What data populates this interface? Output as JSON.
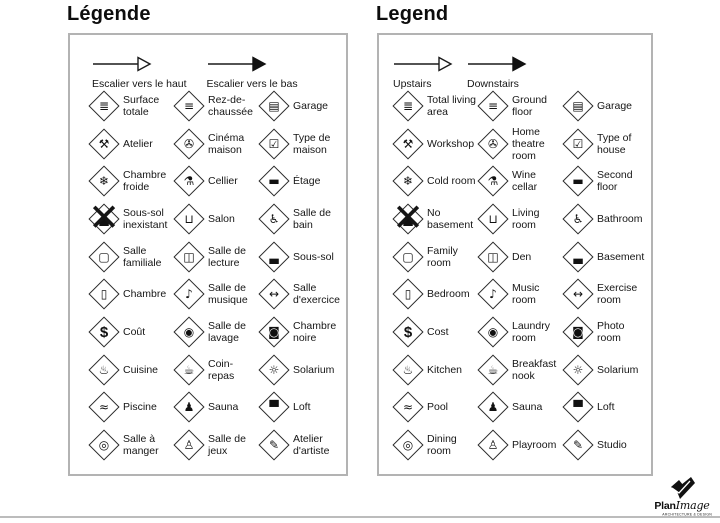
{
  "colors": {
    "ink": "#1a1a1a",
    "panel_border": "#b3b3b3"
  },
  "panels": [
    {
      "id": "fr",
      "title": "Légende",
      "stairs_up": "Escalier vers le haut",
      "stairs_down": "Escalier vers le bas",
      "items": [
        {
          "icon": "total-living-area",
          "label": "Surface totale"
        },
        {
          "icon": "ground-floor",
          "label": "Rez-de-chaussée"
        },
        {
          "icon": "garage",
          "label": "Garage"
        },
        {
          "icon": "workshop",
          "label": "Atelier"
        },
        {
          "icon": "home-theatre",
          "label": "Cinéma maison"
        },
        {
          "icon": "type-of-house",
          "label": "Type de maison"
        },
        {
          "icon": "cold-room",
          "label": "Chambre froide"
        },
        {
          "icon": "wine-cellar",
          "label": "Cellier"
        },
        {
          "icon": "second-floor",
          "label": "Étage"
        },
        {
          "icon": "no-basement",
          "label": "Sous-sol inexistant"
        },
        {
          "icon": "living-room",
          "label": "Salon"
        },
        {
          "icon": "bathroom",
          "label": "Salle de bain"
        },
        {
          "icon": "family-room",
          "label": "Salle familiale"
        },
        {
          "icon": "den",
          "label": "Salle de lecture"
        },
        {
          "icon": "basement",
          "label": "Sous-sol"
        },
        {
          "icon": "bedroom",
          "label": "Chambre"
        },
        {
          "icon": "music-room",
          "label": "Salle de musique"
        },
        {
          "icon": "exercise-room",
          "label": "Salle d'exercice"
        },
        {
          "icon": "cost",
          "label": "Coût"
        },
        {
          "icon": "laundry-room",
          "label": "Salle de lavage"
        },
        {
          "icon": "photo-room",
          "label": "Chambre noire"
        },
        {
          "icon": "kitchen",
          "label": "Cuisine"
        },
        {
          "icon": "breakfast-nook",
          "label": "Coin-repas"
        },
        {
          "icon": "solarium",
          "label": "Solarium"
        },
        {
          "icon": "pool",
          "label": "Piscine"
        },
        {
          "icon": "sauna",
          "label": "Sauna"
        },
        {
          "icon": "loft",
          "label": "Loft"
        },
        {
          "icon": "dining-room",
          "label": "Salle à manger"
        },
        {
          "icon": "playroom",
          "label": "Salle de jeux"
        },
        {
          "icon": "studio",
          "label": "Atelier d'artiste"
        }
      ]
    },
    {
      "id": "en",
      "title": "Legend",
      "stairs_up": "Upstairs",
      "stairs_down": "Downstairs",
      "items": [
        {
          "icon": "total-living-area",
          "label": "Total living area"
        },
        {
          "icon": "ground-floor",
          "label": "Ground floor"
        },
        {
          "icon": "garage",
          "label": "Garage"
        },
        {
          "icon": "workshop",
          "label": "Workshop"
        },
        {
          "icon": "home-theatre",
          "label": "Home theatre room"
        },
        {
          "icon": "type-of-house",
          "label": "Type of house"
        },
        {
          "icon": "cold-room",
          "label": "Cold room"
        },
        {
          "icon": "wine-cellar",
          "label": "Wine cellar"
        },
        {
          "icon": "second-floor",
          "label": "Second floor"
        },
        {
          "icon": "no-basement",
          "label": "No basement"
        },
        {
          "icon": "living-room",
          "label": "Living room"
        },
        {
          "icon": "bathroom",
          "label": "Bathroom"
        },
        {
          "icon": "family-room",
          "label": "Family room"
        },
        {
          "icon": "den",
          "label": "Den"
        },
        {
          "icon": "basement",
          "label": "Basement"
        },
        {
          "icon": "bedroom",
          "label": "Bedroom"
        },
        {
          "icon": "music-room",
          "label": "Music room"
        },
        {
          "icon": "exercise-room",
          "label": "Exercise room"
        },
        {
          "icon": "cost",
          "label": "Cost"
        },
        {
          "icon": "laundry-room",
          "label": "Laundry room"
        },
        {
          "icon": "photo-room",
          "label": "Photo room"
        },
        {
          "icon": "kitchen",
          "label": "Kitchen"
        },
        {
          "icon": "breakfast-nook",
          "label": "Breakfast nook"
        },
        {
          "icon": "solarium",
          "label": "Solarium"
        },
        {
          "icon": "pool",
          "label": "Pool"
        },
        {
          "icon": "sauna",
          "label": "Sauna"
        },
        {
          "icon": "loft",
          "label": "Loft"
        },
        {
          "icon": "dining-room",
          "label": "Dining room"
        },
        {
          "icon": "playroom",
          "label": "Playroom"
        },
        {
          "icon": "studio",
          "label": "Studio"
        }
      ]
    }
  ],
  "icon_glyphs": {
    "total-living-area": "≣",
    "ground-floor": "≡",
    "garage": "▤",
    "workshop": "⚒",
    "home-theatre": "✇",
    "type-of-house": "☑",
    "cold-room": "❄",
    "wine-cellar": "⚗",
    "second-floor": "▬",
    "no-basement": "▄",
    "no-basement-cross": "✕",
    "living-room": "⊔",
    "bathroom": "♿",
    "family-room": "▢",
    "den": "◫",
    "basement": "▃",
    "bedroom": "▯",
    "music-room": "♪",
    "exercise-room": "↔",
    "cost": "$",
    "laundry-room": "◉",
    "photo-room": "◙",
    "kitchen": "♨",
    "breakfast-nook": "☕",
    "solarium": "☼",
    "pool": "≈",
    "sauna": "♟",
    "loft": "▀",
    "dining-room": "◎",
    "playroom": "♙",
    "studio": "✎"
  },
  "logo": {
    "brand_bold": "Plan",
    "brand_italic": "Image",
    "tagline": "ARCHITECTURE & DESIGN"
  }
}
